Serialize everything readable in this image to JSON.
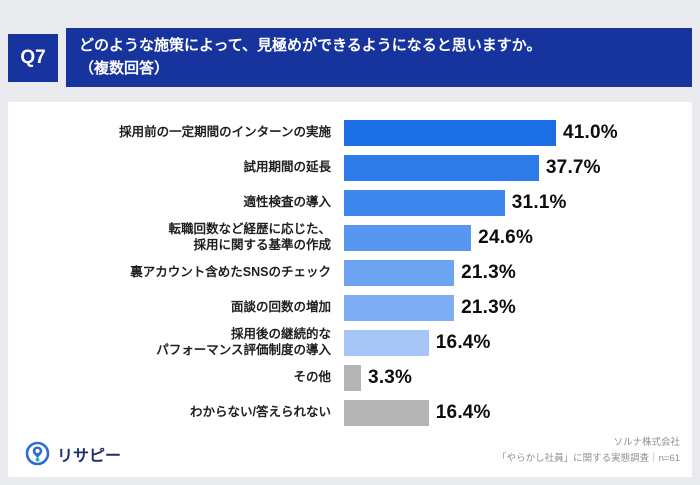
{
  "header": {
    "q_label": "Q7",
    "title_line1": "どのような施策によって、見極めができるようになると思いますか。",
    "title_line2": "（複数回答）"
  },
  "chart_data": {
    "type": "bar",
    "orientation": "horizontal",
    "title": "どのような施策によって、見極めができるようになると思いますか。（複数回答）",
    "categories": [
      "採用前の一定期間のインターンの実施",
      "試用期間の延長",
      "適性検査の導入",
      "転職回数など経歴に応じた、\n採用に関する基準の作成",
      "裏アカウント含めたSNSのチェック",
      "面談の回数の増加",
      "採用後の継続的な\nパフォーマンス評価制度の導入",
      "その他",
      "わからない/答えられない"
    ],
    "values": [
      41.0,
      37.7,
      31.1,
      24.6,
      21.3,
      21.3,
      16.4,
      3.3,
      16.4
    ],
    "value_labels": [
      "41.0%",
      "37.7%",
      "31.1%",
      "24.6%",
      "21.3%",
      "21.3%",
      "16.4%",
      "3.3%",
      "16.4%"
    ],
    "bar_colors": [
      "#1b6ee3",
      "#2e7cea",
      "#3e88ed",
      "#5897ef",
      "#6ca3f2",
      "#7daef4",
      "#a6c6f8",
      "#b4b4b4",
      "#b4b4b4"
    ],
    "unit": "%",
    "xlim": [
      0,
      45
    ],
    "grid": false,
    "legend": false
  },
  "footer": {
    "logo_text": "リサピー",
    "source_line1": "ソルナ株式会社",
    "source_line2": "「やらかし社員」に関する実態調査｜n=61"
  },
  "colors": {
    "header_bg": "#16339e",
    "page_bg": "#e9ebee",
    "panel_bg": "#ffffff",
    "bar_gray": "#b4b4b4",
    "value_text": "#0d0d0d",
    "source_text": "#8a8f94",
    "logo_navy": "#1d2f6e",
    "logo_teal": "#19b8c4",
    "logo_blue": "#2b6cd4"
  }
}
